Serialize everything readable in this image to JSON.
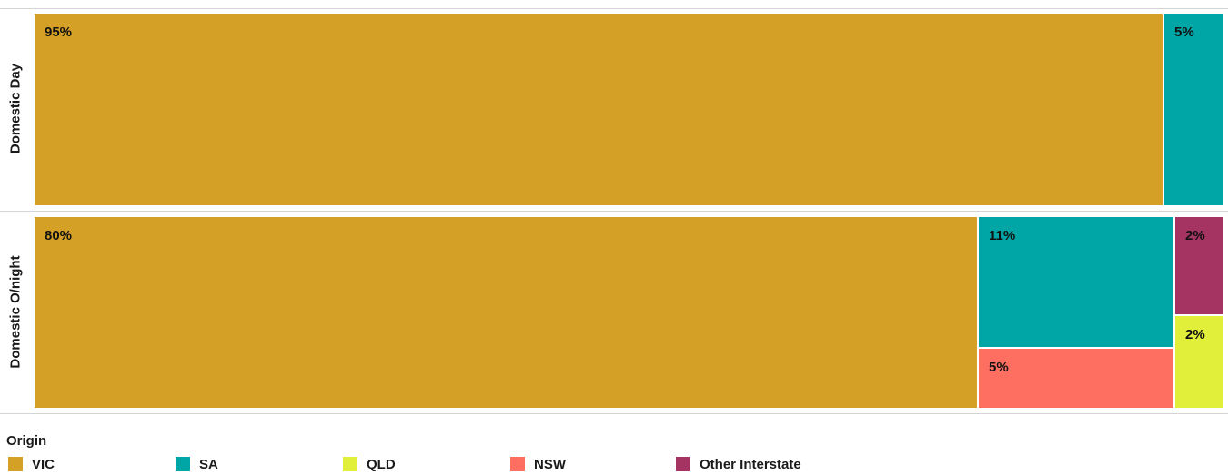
{
  "chart_data": {
    "type": "treemap",
    "legend_title": "Origin",
    "legend_placement": "bottom-left",
    "categories": [
      {
        "name": "VIC",
        "color": "#D4A026"
      },
      {
        "name": "SA",
        "color": "#00A6A6"
      },
      {
        "name": "QLD",
        "color": "#E1EE3A"
      },
      {
        "name": "NSW",
        "color": "#FF6F61"
      },
      {
        "name": "Other Interstate",
        "color": "#A63463"
      }
    ],
    "rows": [
      {
        "label": "Domestic Day",
        "tiles": [
          {
            "origin": "VIC",
            "label": "95%",
            "value": 95
          },
          {
            "origin": "SA",
            "label": "5%",
            "value": 5
          }
        ]
      },
      {
        "label": "Domestic O/night",
        "tiles": [
          {
            "origin": "VIC",
            "label": "80%",
            "value": 80
          },
          {
            "origin": "SA",
            "label": "11%",
            "value": 11
          },
          {
            "origin": "NSW",
            "label": "5%",
            "value": 5
          },
          {
            "origin": "Other Interstate",
            "label": "2%",
            "value": 2
          },
          {
            "origin": "QLD",
            "label": "2%",
            "value": 2
          }
        ]
      }
    ]
  }
}
